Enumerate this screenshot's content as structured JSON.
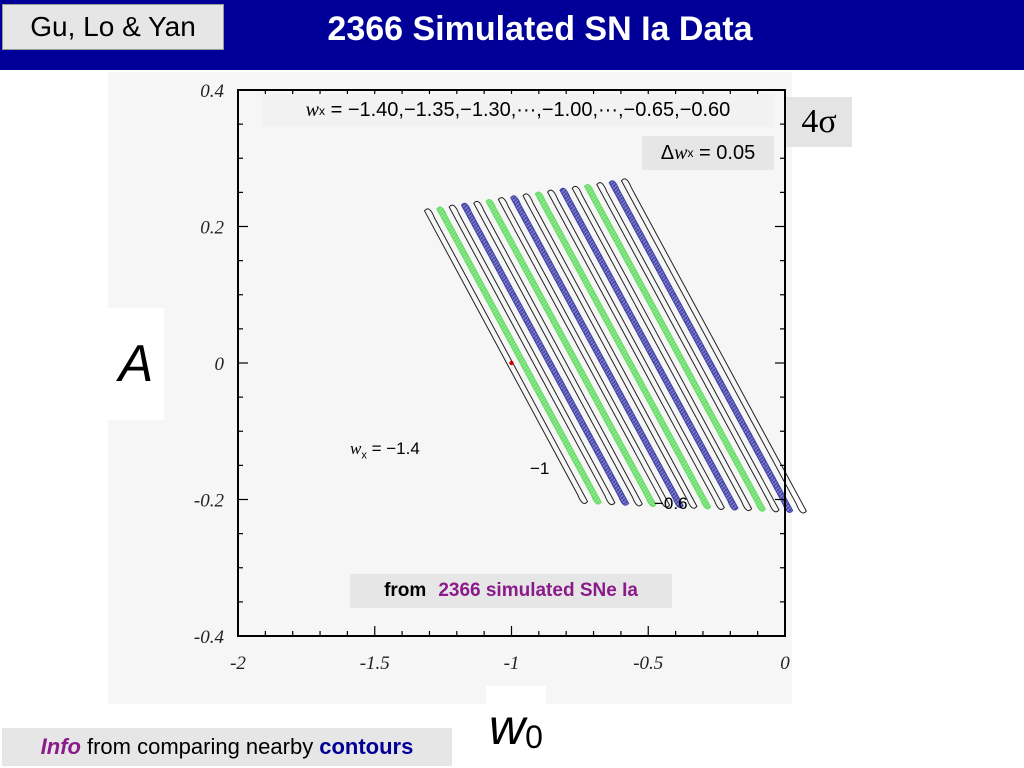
{
  "header": {
    "author": "Gu, Lo & Yan",
    "title": "2366 Simulated SN Ia Data"
  },
  "legend": {
    "wx_var": "w",
    "wx_sub": "x",
    "wx_values": "= −1.40,−1.35,−1.30,···,−1.00,···,−0.65,−0.60",
    "dw_delta": "Δ",
    "dw_var": "w",
    "dw_sub": "x",
    "dw_value": "= 0.05",
    "sigma": "4σ"
  },
  "annotations": {
    "start_var": "w",
    "start_sub": "x",
    "start_value": "= −1.4",
    "mid_value": "−1",
    "end_value": "−0.6"
  },
  "source": {
    "prefix": "from",
    "highlight": "2366 simulated SNe Ia"
  },
  "footer": {
    "info": "Info",
    "mid": "from comparing nearby",
    "contours": "contours"
  },
  "chart_data": {
    "type": "scatter",
    "title": "",
    "xlabel": "w",
    "xlabel_sub": "0",
    "ylabel": "A",
    "xlim": [
      -2,
      0
    ],
    "ylim": [
      -0.4,
      0.4
    ],
    "x_ticks": [
      "-2",
      "-1.5",
      "-1",
      "-0.5",
      "0"
    ],
    "y_ticks": [
      "-0.4",
      "-0.2",
      "0",
      "0.2",
      "0.4"
    ],
    "grid": false,
    "fiducial_point": {
      "x": -1.0,
      "y": 0.0
    },
    "contour_slope": -0.725,
    "contours": [
      {
        "wx": -1.4,
        "style": "outline"
      },
      {
        "wx": -1.35,
        "style": "green"
      },
      {
        "wx": -1.3,
        "style": "outline"
      },
      {
        "wx": -1.25,
        "style": "blue"
      },
      {
        "wx": -1.2,
        "style": "outline"
      },
      {
        "wx": -1.15,
        "style": "green"
      },
      {
        "wx": -1.1,
        "style": "outline"
      },
      {
        "wx": -1.05,
        "style": "blue"
      },
      {
        "wx": -1.0,
        "style": "outline"
      },
      {
        "wx": -0.95,
        "style": "green"
      },
      {
        "wx": -0.9,
        "style": "outline"
      },
      {
        "wx": -0.85,
        "style": "blue"
      },
      {
        "wx": -0.8,
        "style": "outline"
      },
      {
        "wx": -0.75,
        "style": "green"
      },
      {
        "wx": -0.7,
        "style": "outline"
      },
      {
        "wx": -0.65,
        "style": "blue"
      },
      {
        "wx": -0.6,
        "style": "outline"
      }
    ],
    "colors": {
      "green": "#66dd66",
      "blue": "#4444aa",
      "outline": "#222222",
      "point": "#cc0000"
    }
  }
}
